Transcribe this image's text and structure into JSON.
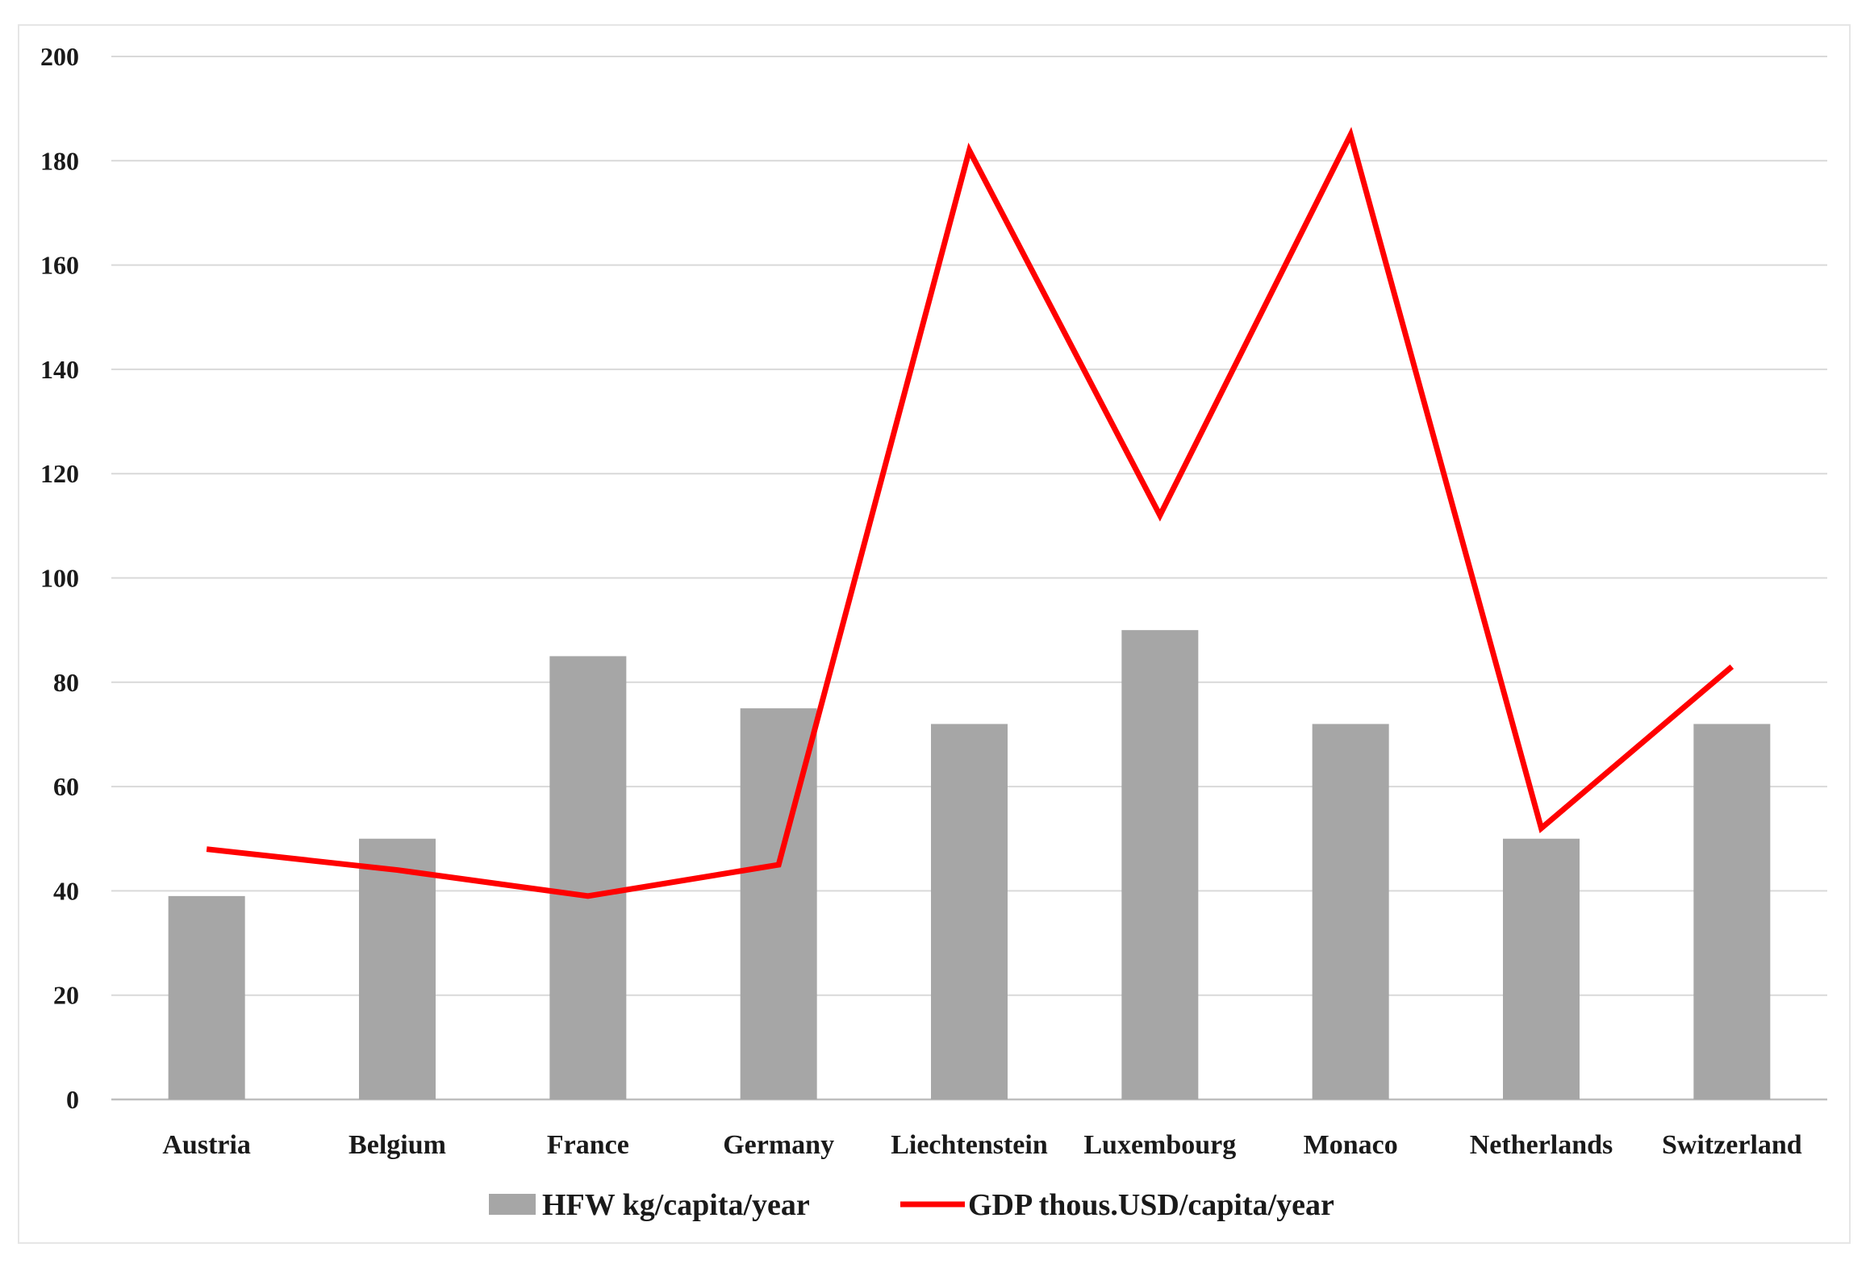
{
  "chart_data": {
    "type": "bar",
    "categories": [
      "Austria",
      "Belgium",
      "France",
      "Germany",
      "Liechtenstein",
      "Luxembourg",
      "Monaco",
      "Netherlands",
      "Switzerland"
    ],
    "series": [
      {
        "name": "HFW kg/capita/year",
        "type": "bar",
        "color": "#a6a6a6",
        "values": [
          39,
          50,
          85,
          75,
          72,
          90,
          72,
          50,
          72
        ]
      },
      {
        "name": "GDP thous.USD/capita/year",
        "type": "line",
        "color": "#ff0000",
        "values": [
          48,
          44,
          39,
          45,
          182,
          112,
          185,
          52,
          83
        ]
      }
    ],
    "title": "",
    "xlabel": "",
    "ylabel": "",
    "ylim": [
      0,
      200
    ],
    "yticks": [
      0,
      20,
      40,
      60,
      80,
      100,
      120,
      140,
      160,
      180,
      200
    ],
    "grid": true,
    "legend": "bottom"
  }
}
